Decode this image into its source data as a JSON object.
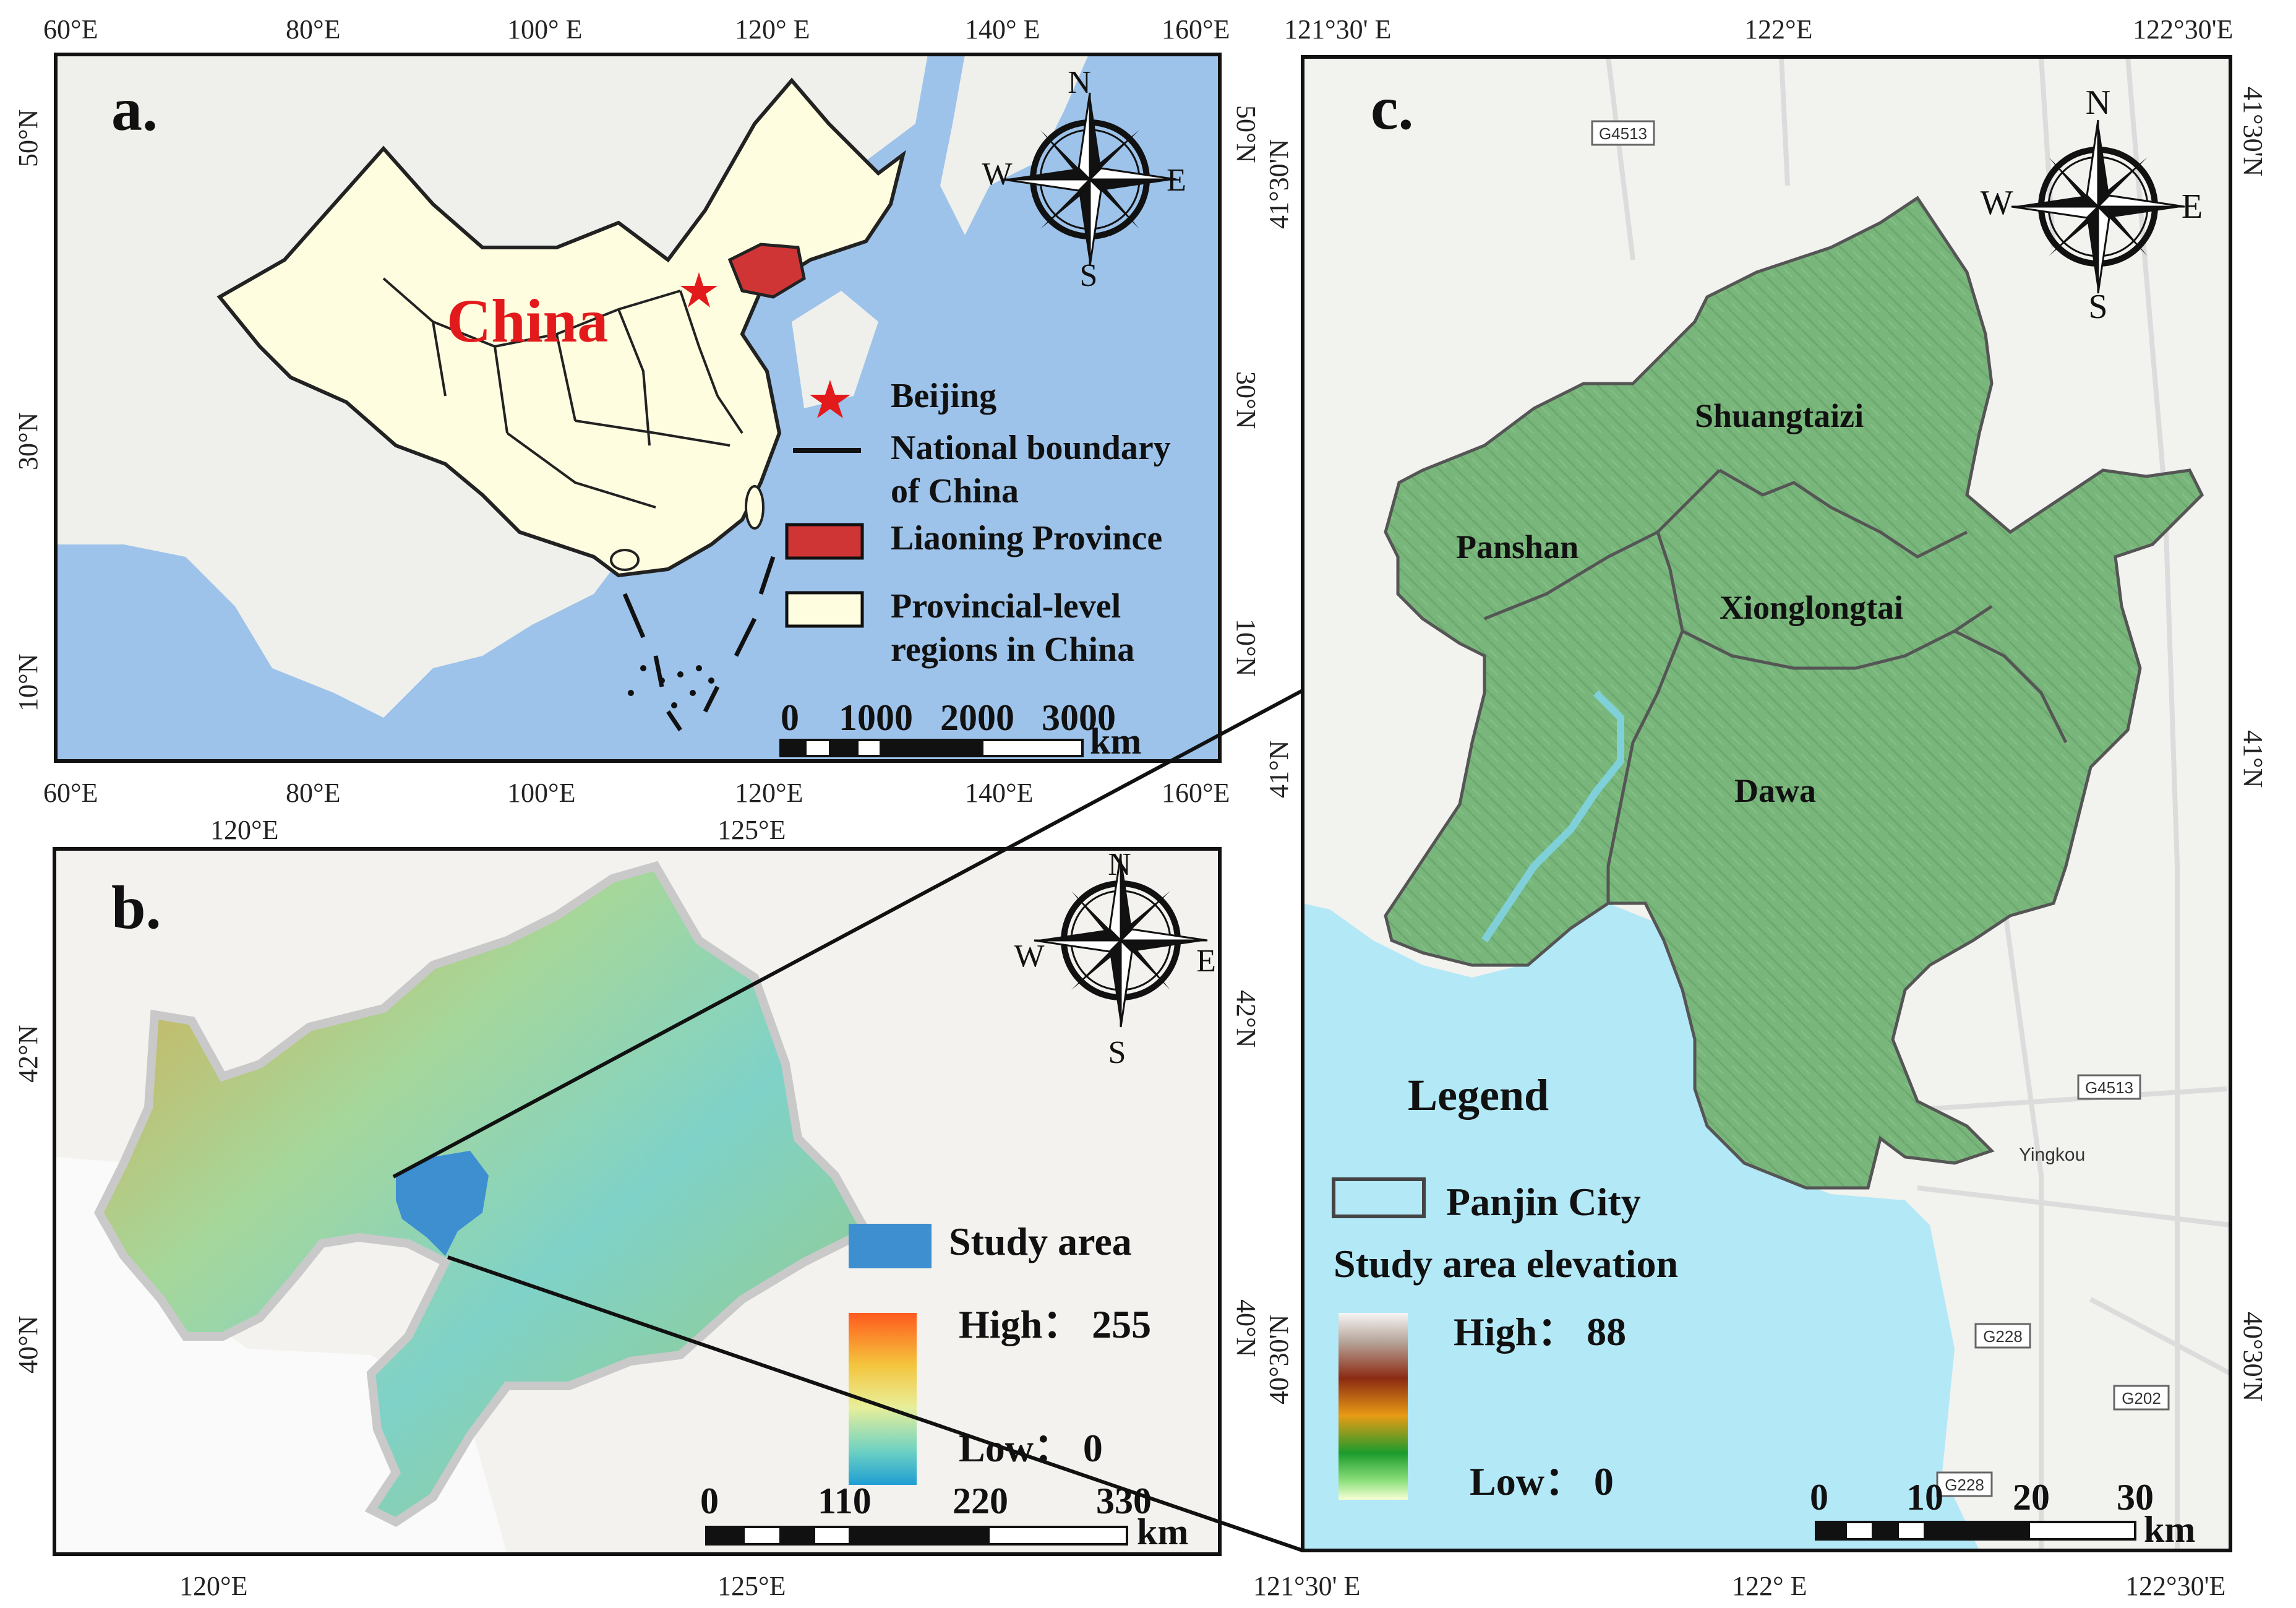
{
  "panel_a": {
    "label": "a.",
    "country_label": "China",
    "top_ticks": [
      "60°E",
      "80°E",
      "100° E",
      "120° E",
      "140° E",
      "160°E"
    ],
    "bottom_ticks": [
      "60°E",
      "80°E",
      "100°E",
      "120°E",
      "140°E",
      "160°E"
    ],
    "left_ticks": [
      "50°N",
      "30°N",
      "10°N"
    ],
    "right_ticks": [
      "50°N",
      "30°N",
      "10°N"
    ],
    "legend": {
      "beijing": "Beijing",
      "boundary_line1": "National boundary",
      "boundary_line2": "of China",
      "liaoning": "Liaoning Province",
      "provincial_line1": "Provincial-level",
      "provincial_line2": "regions in China"
    },
    "scale": {
      "labels": [
        "0",
        "1000",
        "2000",
        "3000"
      ],
      "unit": "km"
    },
    "compass": {
      "n": "N",
      "s": "S",
      "e": "E",
      "w": "W"
    },
    "colors": {
      "ocean": "#9dc3ea",
      "land": "#fffde0",
      "liaoning": "#d03535",
      "star": "#e31a1c"
    }
  },
  "panel_b": {
    "label": "b.",
    "top_ticks": [
      "120°E",
      "125°E"
    ],
    "bottom_ticks": [
      "120°E",
      "125°E"
    ],
    "left_ticks": [
      "42°N",
      "40°N"
    ],
    "right_ticks": [
      "42°N",
      "40°N"
    ],
    "legend": {
      "study_area": "Study area",
      "high": "High： 255",
      "low": "Low： 0"
    },
    "scale": {
      "labels": [
        "0",
        "110",
        "220",
        "330"
      ],
      "unit": "km"
    },
    "compass": {
      "n": "N",
      "s": "S",
      "e": "E",
      "w": "W"
    },
    "colors": {
      "study_area": "#3d8fd0"
    }
  },
  "panel_c": {
    "label": "c.",
    "top_ticks": [
      "121°30' E",
      "122°E",
      "122°30'E"
    ],
    "bottom_ticks": [
      "121°30' E",
      "122° E",
      "122°30'E"
    ],
    "left_ticks": [
      "41°30'N",
      "41°N",
      "40°30'N"
    ],
    "right_ticks": [
      "41°30'N",
      "41°N",
      "40°30'N"
    ],
    "districts": [
      "Shuangtaizi",
      "Panshan",
      "Xionglongtai",
      "Dawa"
    ],
    "road_labels": [
      "G4513",
      "G4513",
      "G228",
      "G202",
      "G228"
    ],
    "place_labels": [
      "Yingkou"
    ],
    "legend": {
      "title": "Legend",
      "city": "Panjin City",
      "elevation_title": "Study area elevation",
      "high": "High： 88",
      "low": "Low： 0"
    },
    "scale": {
      "labels": [
        "0",
        "10",
        "20",
        "30"
      ],
      "unit": "km"
    },
    "compass": {
      "n": "N",
      "s": "S",
      "e": "E",
      "w": "W"
    },
    "colors": {
      "sea": "#b3e8f7",
      "study_area": "#78b67a"
    }
  }
}
